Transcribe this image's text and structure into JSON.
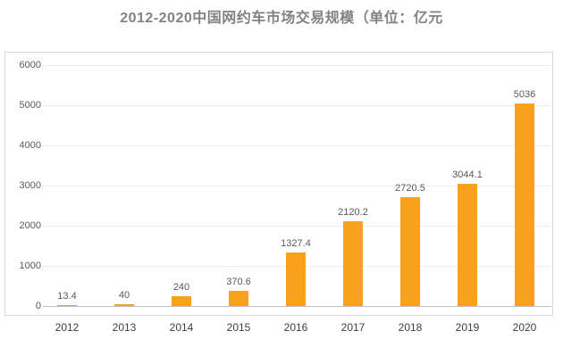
{
  "title": "2012-2020中国网约车市场交易规模（单位：亿元",
  "chart_data": {
    "type": "bar",
    "title": "2012-2020中国网约车市场交易规模（单位：亿元",
    "categories": [
      "2012",
      "2013",
      "2014",
      "2015",
      "2016",
      "2017",
      "2018",
      "2019",
      "2020"
    ],
    "values": [
      13.4,
      40,
      240,
      370.6,
      1327.4,
      2120.2,
      2720.5,
      3044.1,
      5036
    ],
    "data_labels": [
      "13.4",
      "40",
      "240",
      "370.6",
      "1327.4",
      "2120.2",
      "2720.5",
      "3044.1",
      "5036"
    ],
    "yticks": [
      "0",
      "1000",
      "2000",
      "3000",
      "4000",
      "5000",
      "6000"
    ],
    "ylim": [
      0,
      6000
    ],
    "xlabel": "",
    "ylabel": "",
    "grid": true,
    "legend_position": "none",
    "colors": {
      "bar": "#F9A11C",
      "gridline": "#ECECEC",
      "axis_line": "#BFBFBF",
      "plot_border": "#D9D9D9",
      "title_text": "#828282",
      "tick_label_text": "#595959",
      "data_label_text": "#595959",
      "category_label_text": "#404040",
      "background": "#FFFFFF"
    }
  }
}
